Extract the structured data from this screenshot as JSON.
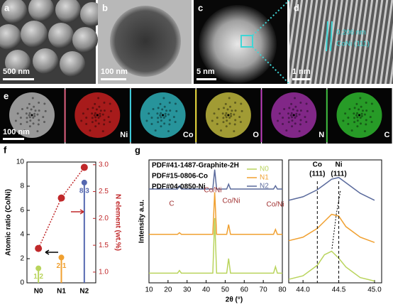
{
  "panels": {
    "labels": [
      "a",
      "b",
      "c",
      "d",
      "e",
      "f",
      "g"
    ],
    "scale_bars": [
      "500 nm",
      "100 nm",
      "5 nm",
      "1 nm",
      "100 nm"
    ],
    "lattice": [
      "0.206 nm",
      "CoNi (111)"
    ],
    "maps": [
      "Ni",
      "Co",
      "O",
      "N",
      "C"
    ]
  },
  "chart_data": [
    {
      "type": "lollipop",
      "categories": [
        "N0",
        "N1",
        "N2"
      ],
      "ylabel": "Atomic ratio (Co/Ni)",
      "y2label": "N element (wt.%)",
      "ylim": [
        0,
        10
      ],
      "yticks": [
        0,
        2,
        4,
        6,
        8,
        10
      ],
      "y2lim": [
        0.8,
        3.05
      ],
      "y2ticks": [
        {
          "value": 1,
          "label": "1.0"
        },
        1.5,
        {
          "value": 2,
          "label": "2.0"
        },
        2.5,
        {
          "value": 3,
          "label": "3.0"
        }
      ],
      "series": [
        {
          "name": "Atomic ratio (Co/Ni)",
          "colors": [
            "#b9d45c",
            "#f0a030",
            "#5568b0"
          ],
          "values": [
            1.2,
            2.1,
            8.3
          ]
        },
        {
          "name": "N element (wt.%)",
          "axis": "y2",
          "color": "#c0282a",
          "values": [
            1.44,
            2.38,
            2.95
          ]
        }
      ]
    },
    {
      "type": "line",
      "ylabel": "Intensity a.u.",
      "xlim": [
        10,
        80
      ],
      "xticks": [
        10,
        20,
        30,
        40,
        50,
        60,
        70,
        80
      ],
      "ylim": [
        0,
        3.8
      ],
      "annotations": [
        "PDF#41-1487-Graphite-2H",
        "PDF#15-0806-Co",
        "PDF#04-0850-Ni",
        "C",
        "Co/Ni",
        "Co/Ni",
        "Co/Ni"
      ],
      "x": [
        10,
        20,
        25,
        26,
        27,
        35,
        43.5,
        44.5,
        45.5,
        50.8,
        51.8,
        52.8,
        60,
        70,
        75.4,
        76.4,
        77.4,
        80
      ],
      "series": [
        {
          "name": "N0",
          "color": "#b9d45c",
          "values": [
            0.3,
            0.3,
            0.3,
            0.38,
            0.3,
            0.3,
            0.3,
            2.0,
            0.3,
            0.3,
            0.75,
            0.3,
            0.3,
            0.3,
            0.3,
            0.5,
            0.3,
            0.3
          ]
        },
        {
          "name": "N1",
          "color": "#f0a030",
          "values": [
            1.5,
            1.5,
            1.5,
            1.55,
            1.5,
            1.5,
            1.5,
            2.8,
            1.5,
            1.5,
            1.8,
            1.5,
            1.5,
            1.5,
            1.5,
            1.65,
            1.5,
            1.5
          ]
        },
        {
          "name": "N2",
          "color": "#5a6a9c",
          "values": [
            2.9,
            2.9,
            2.9,
            3.0,
            2.9,
            2.9,
            2.9,
            3.5,
            2.9,
            2.9,
            3.05,
            2.9,
            2.9,
            2.9,
            2.9,
            3.0,
            2.9,
            2.9
          ]
        }
      ]
    },
    {
      "type": "line",
      "xlabel": "2θ (°)",
      "xlim": [
        43.8,
        45.1
      ],
      "xticks": [
        {
          "value": 44,
          "label": "44.0"
        },
        44.5,
        {
          "value": 45,
          "label": "45.0"
        }
      ],
      "ylim": [
        0,
        3.5
      ],
      "references": [
        {
          "name": "Co",
          "hkl": "(111)",
          "value": 44.2
        },
        {
          "name": "Ni",
          "hkl": "(111)",
          "value": 44.5
        }
      ],
      "x": [
        43.8,
        44.0,
        44.2,
        44.3,
        44.4,
        44.5,
        44.6,
        44.8,
        45.0
      ],
      "series": [
        {
          "name": "N0",
          "color": "#b9d45c",
          "values": [
            0.1,
            0.2,
            0.5,
            0.8,
            0.9,
            0.7,
            0.45,
            0.15,
            0.05
          ]
        },
        {
          "name": "N1",
          "color": "#f0a030",
          "values": [
            1.2,
            1.3,
            1.55,
            1.75,
            1.95,
            1.9,
            1.6,
            1.3,
            1.15
          ]
        },
        {
          "name": "N2",
          "color": "#5a6a9c",
          "values": [
            2.35,
            2.45,
            2.65,
            2.8,
            2.95,
            3.0,
            2.85,
            2.55,
            2.35
          ]
        }
      ]
    }
  ]
}
